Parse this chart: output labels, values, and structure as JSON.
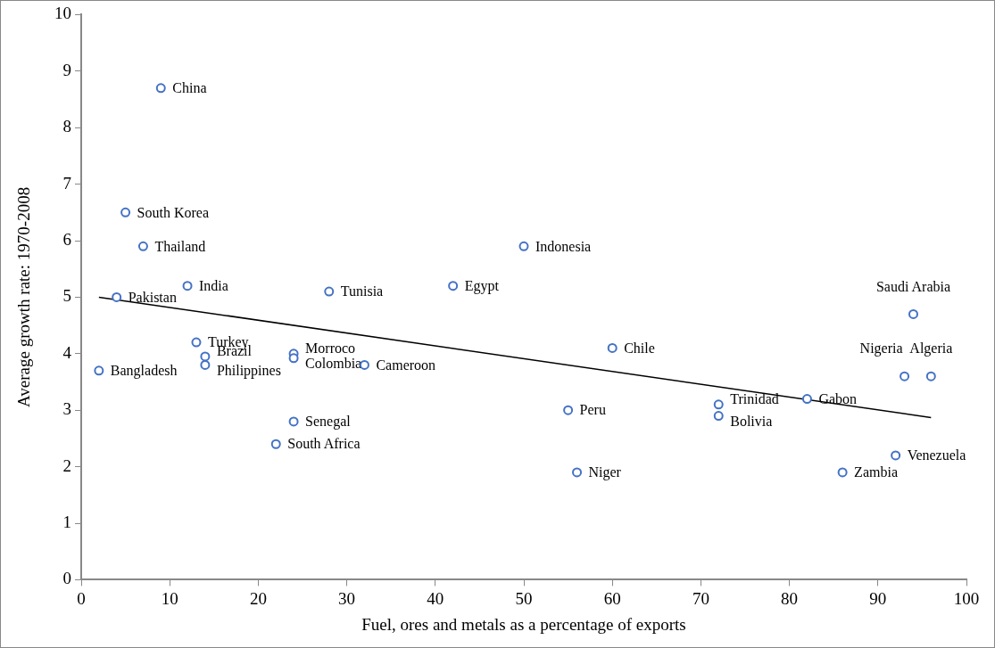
{
  "chart_data": {
    "type": "scatter",
    "xlabel": "Fuel, ores and metals as a percentage of exports",
    "ylabel": "Average growth rate: 1970-2008",
    "xlim": [
      0,
      100
    ],
    "ylim": [
      0,
      10
    ],
    "xticks": [
      0,
      10,
      20,
      30,
      40,
      50,
      60,
      70,
      80,
      90,
      100
    ],
    "yticks": [
      0,
      1,
      2,
      3,
      4,
      5,
      6,
      7,
      8,
      9,
      10
    ],
    "grid": false,
    "legend": false,
    "marker": "circle",
    "series": [
      {
        "color": "#4472c4",
        "x": [
          9,
          5,
          7,
          12,
          4,
          28,
          42,
          50,
          13,
          14,
          14,
          24,
          24,
          32,
          2,
          24,
          22,
          60,
          55,
          56,
          72,
          72,
          82,
          94,
          93,
          96,
          92,
          86
        ],
        "values": [
          8.7,
          6.5,
          5.9,
          5.2,
          5.0,
          5.1,
          5.2,
          5.9,
          4.2,
          3.95,
          3.8,
          4.0,
          3.92,
          3.8,
          3.7,
          2.8,
          2.4,
          4.1,
          3.0,
          1.9,
          3.1,
          2.9,
          3.2,
          4.7,
          3.6,
          3.6,
          2.2,
          1.9
        ]
      },
      {
        "type": "line",
        "color": "#000000",
        "marker": "none",
        "x": [
          2,
          96
        ],
        "values": [
          5.0,
          2.87
        ]
      }
    ],
    "annotations": [
      {
        "text": "China",
        "x": 9,
        "y": 8.7
      },
      {
        "text": "South Korea",
        "x": 5,
        "y": 6.5
      },
      {
        "text": "Thailand",
        "x": 7,
        "y": 5.9
      },
      {
        "text": "India",
        "x": 12,
        "y": 5.2
      },
      {
        "text": "Pakistan",
        "x": 4,
        "y": 5.0
      },
      {
        "text": "Tunisia",
        "x": 28,
        "y": 5.1
      },
      {
        "text": "Egypt",
        "x": 42,
        "y": 5.2
      },
      {
        "text": "Indonesia",
        "x": 50,
        "y": 5.9
      },
      {
        "text": "Turkey",
        "x": 13,
        "y": 4.2
      },
      {
        "text": "Brazil",
        "x": 14,
        "y": 3.95
      },
      {
        "text": "Philippines",
        "x": 14,
        "y": 3.8
      },
      {
        "text": "Morroco",
        "x": 24,
        "y": 4.0
      },
      {
        "text": "Colombia",
        "x": 24,
        "y": 3.92
      },
      {
        "text": "Cameroon",
        "x": 32,
        "y": 3.8
      },
      {
        "text": "Bangladesh",
        "x": 2,
        "y": 3.7
      },
      {
        "text": "Senegal",
        "x": 24,
        "y": 2.8
      },
      {
        "text": "South Africa",
        "x": 22,
        "y": 2.4
      },
      {
        "text": "Chile",
        "x": 60,
        "y": 4.1
      },
      {
        "text": "Peru",
        "x": 55,
        "y": 3.0
      },
      {
        "text": "Niger",
        "x": 56,
        "y": 1.9
      },
      {
        "text": "Trinidad",
        "x": 72,
        "y": 3.1
      },
      {
        "text": "Bolivia",
        "x": 72,
        "y": 2.9
      },
      {
        "text": "Gabon",
        "x": 82,
        "y": 3.2
      },
      {
        "text": "Saudi Arabia",
        "x": 94,
        "y": 4.7
      },
      {
        "text": "Nigeria",
        "x": 93,
        "y": 3.6
      },
      {
        "text": "Algeria",
        "x": 96,
        "y": 3.6
      },
      {
        "text": "Venezuela",
        "x": 92,
        "y": 2.2
      },
      {
        "text": "Zambia",
        "x": 86,
        "y": 1.9
      }
    ]
  }
}
